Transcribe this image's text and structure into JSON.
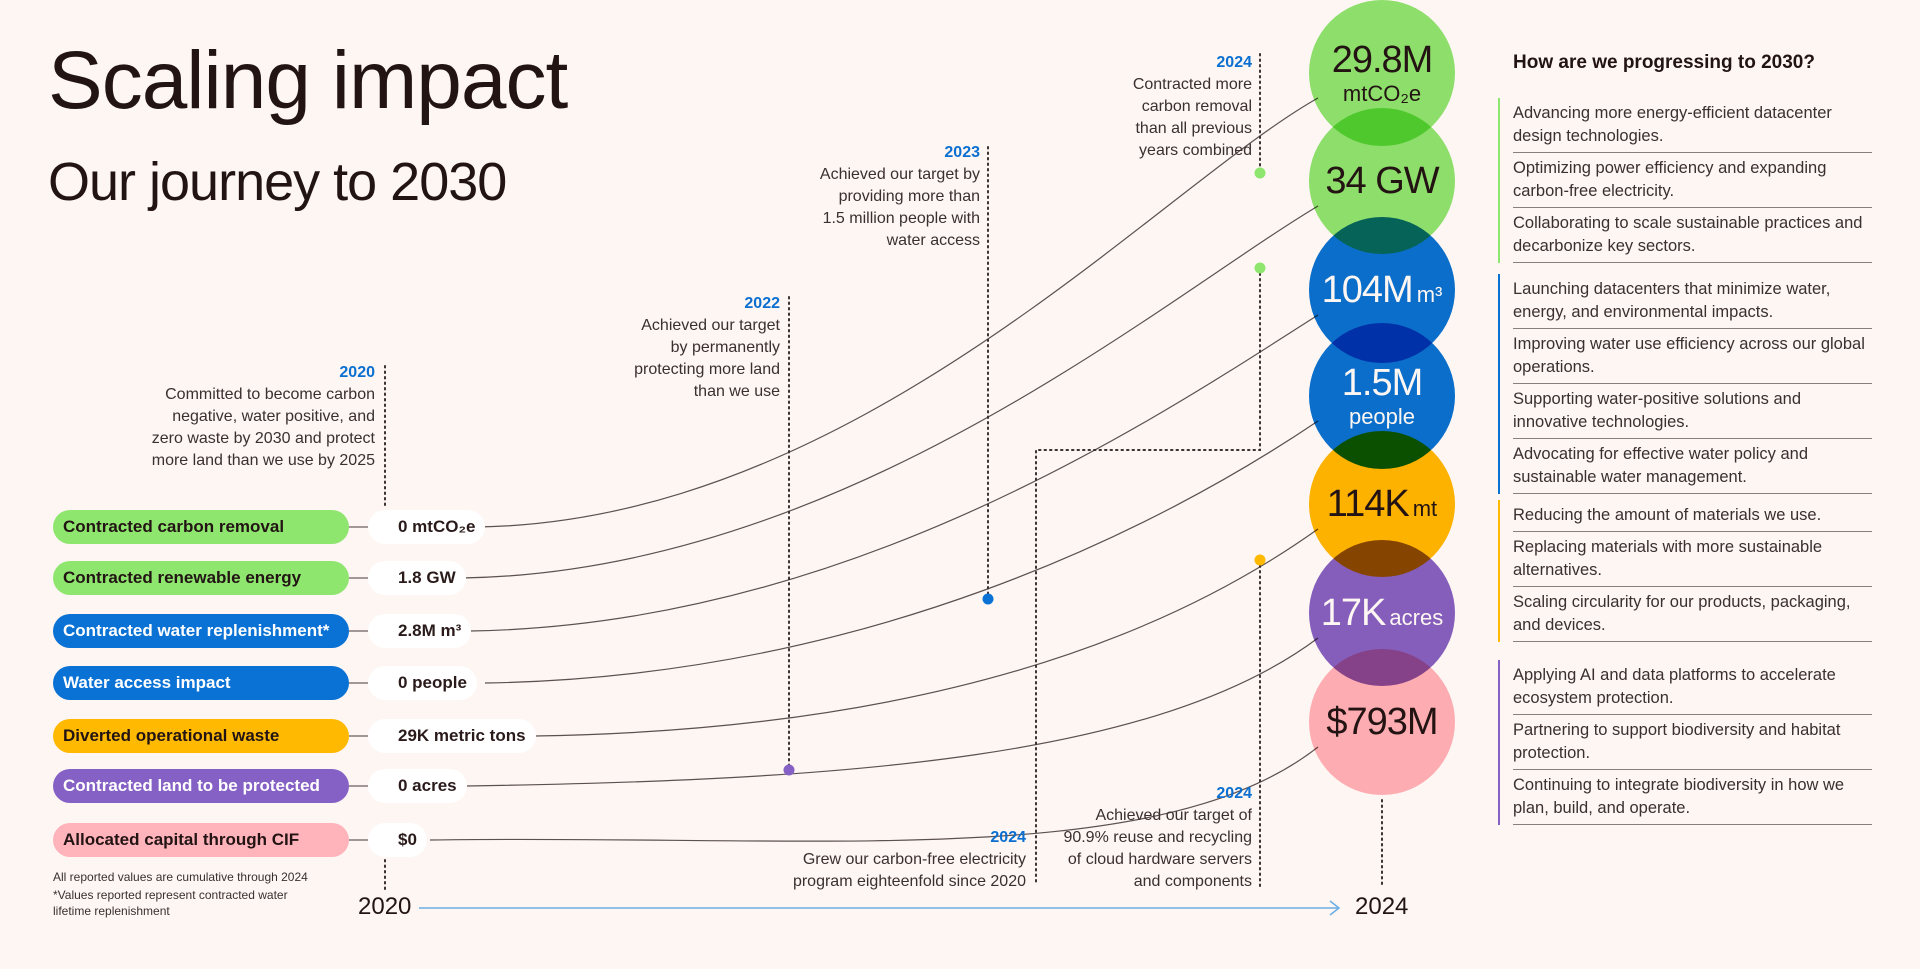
{
  "header": {
    "title": "Scaling impact",
    "subtitle": "Our journey to 2030"
  },
  "colors": {
    "green": "#8ee66f",
    "blue": "#0a72d4",
    "yellow": "#ffb900",
    "purple": "#8661c5",
    "pink": "#ffb3bb",
    "year_blue": "#0a6fd0",
    "axis_line": "#6aaee6",
    "background": "#fdf6f3"
  },
  "metrics": [
    {
      "label": "Contracted carbon removal",
      "start_value": "0 mtCO₂e",
      "end_value": "29.8M",
      "end_unit": "mtCO₂e",
      "color": "#8ee66f",
      "text_color": "#231414"
    },
    {
      "label": "Contracted renewable energy",
      "start_value": "1.8 GW",
      "end_value": "34 GW",
      "end_unit": "",
      "color": "#8ee66f",
      "text_color": "#231414"
    },
    {
      "label": "Contracted water replenishment*",
      "start_value": "2.8M m³",
      "end_value": "104M",
      "end_unit": "m³",
      "color": "#0a72d4",
      "text_color": "#ffffff"
    },
    {
      "label": "Water access impact",
      "start_value": "0 people",
      "end_value": "1.5M",
      "end_unit": "people",
      "color": "#0a72d4",
      "text_color": "#ffffff"
    },
    {
      "label": "Diverted operational waste",
      "start_value": "29K metric tons",
      "end_value": "114K",
      "end_unit": "mt",
      "color": "#ffb900",
      "text_color": "#231414"
    },
    {
      "label": "Contracted land to be protected",
      "start_value": "0 acres",
      "end_value": "17K",
      "end_unit": "acres",
      "color": "#8661c5",
      "text_color": "#ffffff"
    },
    {
      "label": "Allocated capital through CIF",
      "start_value": "$0",
      "end_value": "$793M",
      "end_unit": "",
      "color": "#ffb3bb",
      "text_color": "#231414"
    }
  ],
  "milestones": [
    {
      "year": "2020",
      "text": [
        "Committed to become carbon",
        "negative, water positive, and",
        "zero waste by 2030 and protect",
        "more land than we use by 2025"
      ]
    },
    {
      "year": "2022",
      "text": [
        "Achieved our target",
        "by permanently",
        "protecting more land",
        "than we use"
      ]
    },
    {
      "year": "2023",
      "text": [
        "Achieved our target by",
        "providing more than",
        "1.5 million people with",
        "water access"
      ]
    },
    {
      "year": "2024",
      "text": [
        "Contracted more",
        "carbon removal",
        "than all previous",
        "years combined"
      ]
    },
    {
      "year": "2024",
      "text": [
        "Grew our carbon-free electricity",
        "program eighteenfold since 2020"
      ]
    },
    {
      "year": "2024",
      "text": [
        "Achieved our target of",
        "90.9% reuse and recycling",
        "of cloud hardware servers",
        "and components"
      ]
    }
  ],
  "timeline": {
    "start_year": "2020",
    "end_year": "2024"
  },
  "footnotes": [
    "All reported values are cumulative through 2024",
    "*Values reported represent contracted water",
    "lifetime replenishment"
  ],
  "progress_panel": {
    "title": "How are we progressing to 2030?",
    "groups": [
      {
        "color": "#8ee66f",
        "items": [
          "Advancing more energy-efficient datacenter design technologies.",
          "Optimizing power efficiency and expanding carbon-free electricity.",
          "Collaborating to scale sustainable practices and decarbonize key sectors."
        ]
      },
      {
        "color": "#0a72d4",
        "items": [
          "Launching datacenters that minimize water, energy, and environmental impacts.",
          "Improving water use efficiency across our global operations.",
          "Supporting water-positive solutions and innovative technologies.",
          "Advocating for effective water policy and sustainable water management."
        ]
      },
      {
        "color": "#ffb900",
        "items": [
          "Reducing the amount of materials we use.",
          "Replacing materials with more sustainable alternatives.",
          "Scaling circularity for our products, packaging, and devices."
        ]
      },
      {
        "color": "#8661c5",
        "items": [
          "Applying AI and data platforms to accelerate ecosystem protection.",
          "Partnering to support biodiversity and habitat protection.",
          "Continuing to integrate biodiversity in how we plan, build, and operate."
        ]
      }
    ]
  }
}
